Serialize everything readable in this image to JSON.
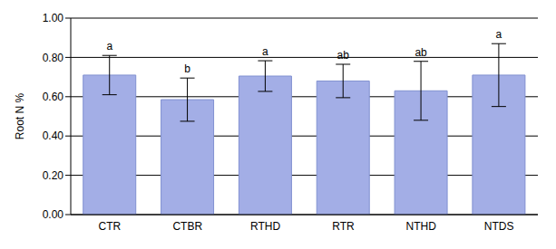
{
  "chart_data": {
    "type": "bar",
    "y_label": "Root N %",
    "categories": [
      "CTR",
      "CTBR",
      "RTHD",
      "RTR",
      "NTHD",
      "NTDS"
    ],
    "values": [
      0.71,
      0.585,
      0.705,
      0.68,
      0.63,
      0.71
    ],
    "errors": [
      0.1,
      0.11,
      0.078,
      0.085,
      0.15,
      0.16
    ],
    "letters": [
      "a",
      "b",
      "a",
      "ab",
      "ab",
      "a"
    ],
    "color": "#a3aee6",
    "ylim": [
      0,
      1
    ],
    "yticks": [
      {
        "value": 0,
        "label": "0.00"
      },
      {
        "value": 0.2,
        "label": "0.20"
      },
      {
        "value": 0.4,
        "label": "0.40"
      },
      {
        "value": 0.6,
        "label": "0.60"
      },
      {
        "value": 0.8,
        "label": "0.80"
      },
      {
        "value": 1,
        "label": "1.00"
      }
    ],
    "grid": true
  }
}
